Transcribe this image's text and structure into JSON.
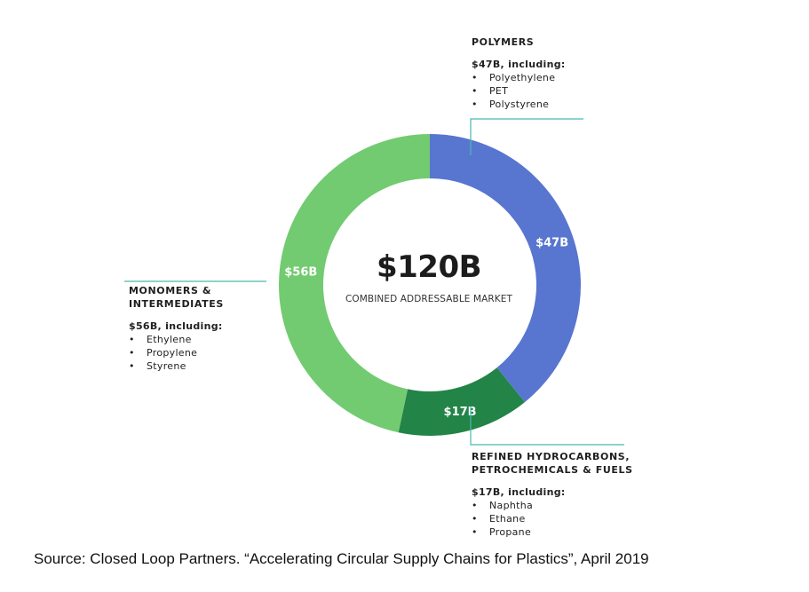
{
  "chart_data": {
    "type": "pie",
    "donut": true,
    "total_label": "$120B",
    "center_caption": "COMBINED ADDRESSABLE MARKET",
    "segments": [
      {
        "name": "POLYMERS",
        "value": 47,
        "label": "$47B",
        "color": "#5876CF"
      },
      {
        "name": "REFINED HYDROCARBONS, PETROCHEMICALS & FUELS",
        "value": 17,
        "label": "$17B",
        "color": "#228447"
      },
      {
        "name": "MONOMERS & INTERMEDIATES",
        "value": 56,
        "label": "$56B",
        "color": "#72CB70"
      }
    ]
  },
  "callouts": {
    "polymers": {
      "title_lines": [
        "POLYMERS"
      ],
      "subtitle": "$47B, including:",
      "items": [
        "Polyethylene",
        "PET",
        "Polystyrene"
      ]
    },
    "refined": {
      "title_lines": [
        "REFINED HYDROCARBONS,",
        "PETROCHEMICALS & FUELS"
      ],
      "subtitle": "$17B, including:",
      "items": [
        "Naphtha",
        "Ethane",
        "Propane"
      ]
    },
    "monomers": {
      "title_lines": [
        "MONOMERS &",
        "INTERMEDIATES"
      ],
      "subtitle": "$56B, including:",
      "items": [
        "Ethylene",
        "Propylene",
        "Styrene"
      ]
    }
  },
  "bullet": "•",
  "connector_color": "#49B9B2",
  "source": "Source: Closed Loop Partners. “Accelerating Circular Supply Chains for Plastics”, April 2019"
}
